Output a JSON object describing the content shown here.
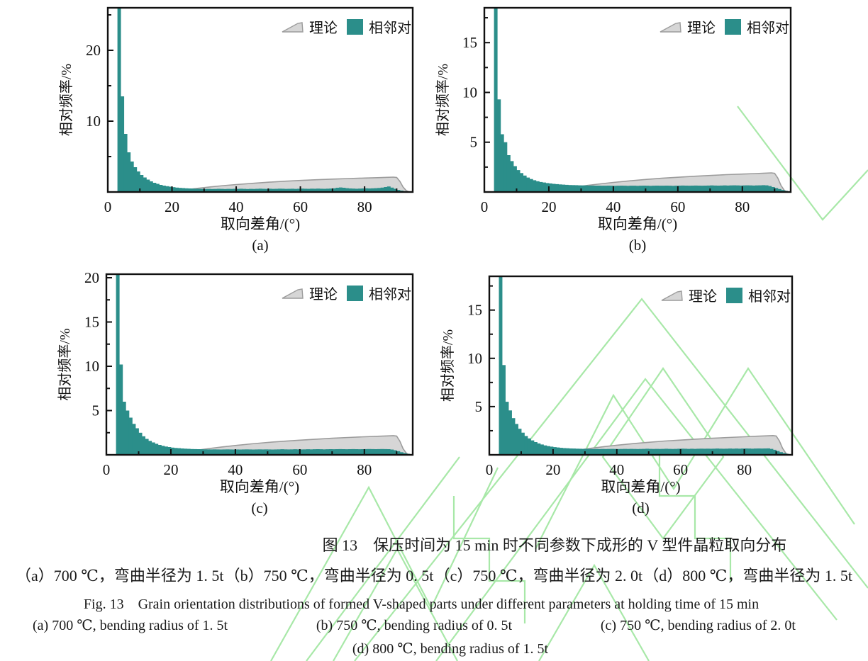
{
  "colors": {
    "bar_teal": "#2b8e8a",
    "theory_fill": "#d6d6d6",
    "theory_stroke": "#9c9c9c",
    "axis_black": "#111111",
    "watermark_green": "#a8e8a8"
  },
  "legend": {
    "theory_label": "理论",
    "adjacent_label": "相邻对"
  },
  "captions": {
    "cn_title": "图 13　保压时间为 15 min 时不同参数下成形的 V 型件晶粒取向分布",
    "cn_parts": [
      "（a）700 ℃，弯曲半径为 1. 5t",
      "（b）750 ℃，弯曲半径为 0. 5t",
      "（c）750 ℃，弯曲半径为 2. 0t",
      "（d）800 ℃，弯曲半径为 1. 5t"
    ],
    "en_title": "Fig. 13　Grain orientation distributions of formed V-shaped parts under different parameters at holding time of 15 min",
    "en_line1_parts": [
      "(a) 700 ℃, bending radius of 1. 5t",
      "(b) 750 ℃, bending radius of 0. 5t",
      "(c) 750 ℃, bending radius of 2. 0t"
    ],
    "en_line2_parts": [
      "(d) 800 ℃, bending radius of 1. 5t"
    ]
  },
  "chart_data": [
    {
      "id": "a",
      "type": "bar",
      "sub_label": "(a)",
      "xlabel": "取向差角/(°)",
      "ylabel": "相对频率/%",
      "xlim": [
        0,
        95
      ],
      "ylim": [
        0,
        26
      ],
      "xtick_major": [
        0,
        20,
        40,
        60,
        80
      ],
      "xtick_minor": [
        10,
        30,
        50,
        70,
        90
      ],
      "ytick_major": [
        10,
        20
      ],
      "ytick_minor": [
        5,
        15,
        25
      ],
      "legend_entries": [
        "理论",
        "相邻对"
      ],
      "bin_start": 3,
      "bin_width": 1,
      "bars": [
        26,
        13.5,
        8.2,
        5.6,
        4.3,
        3.5,
        2.9,
        2.4,
        2.05,
        1.75,
        1.5,
        1.3,
        1.15,
        1.0,
        0.9,
        0.82,
        0.75,
        0.68,
        0.62,
        0.58,
        0.55,
        0.52,
        0.5,
        0.48,
        0.46,
        0.45,
        0.44,
        0.43,
        0.44,
        0.42,
        0.43,
        0.45,
        0.44,
        0.42,
        0.44,
        0.43,
        0.45,
        0.44,
        0.46,
        0.44,
        0.42,
        0.44,
        0.43,
        0.45,
        0.47,
        0.45,
        0.44,
        0.46,
        0.44,
        0.45,
        0.47,
        0.46,
        0.44,
        0.45,
        0.46,
        0.44,
        0.46,
        0.48,
        0.46,
        0.45,
        0.47,
        0.46,
        0.48,
        0.46,
        0.45,
        0.47,
        0.49,
        0.52,
        0.6,
        0.64,
        0.6,
        0.54,
        0.5,
        0.48,
        0.46,
        0.48,
        0.5,
        0.52,
        0.5,
        0.52,
        0.54,
        0.57,
        0.62,
        0.7,
        0.78,
        0.62,
        0.45,
        0.3,
        0.2,
        0.12,
        0.07,
        0.04
      ],
      "theory": [
        [
          16,
          0.02
        ],
        [
          20,
          0.12
        ],
        [
          24,
          0.3
        ],
        [
          28,
          0.52
        ],
        [
          32,
          0.72
        ],
        [
          36,
          0.9
        ],
        [
          40,
          1.05
        ],
        [
          45,
          1.22
        ],
        [
          50,
          1.38
        ],
        [
          55,
          1.52
        ],
        [
          60,
          1.63
        ],
        [
          65,
          1.73
        ],
        [
          70,
          1.82
        ],
        [
          75,
          1.9
        ],
        [
          80,
          1.97
        ],
        [
          84,
          2.02
        ],
        [
          87,
          2.07
        ],
        [
          89,
          2.1
        ],
        [
          90,
          2.05
        ],
        [
          91,
          1.5
        ],
        [
          92,
          0.7
        ],
        [
          93,
          0.2
        ],
        [
          93.8,
          0.02
        ]
      ]
    },
    {
      "id": "b",
      "type": "bar",
      "sub_label": "(b)",
      "xlabel": "取向差角/(°)",
      "ylabel": "相对频率/%",
      "xlim": [
        0,
        95
      ],
      "ylim": [
        0,
        18.5
      ],
      "xtick_major": [
        0,
        20,
        40,
        60,
        80
      ],
      "xtick_minor": [
        10,
        30,
        50,
        70,
        90
      ],
      "ytick_major": [
        5,
        10,
        15
      ],
      "ytick_minor": [
        2.5,
        7.5,
        12.5,
        17.5
      ],
      "legend_entries": [
        "理论",
        "相邻对"
      ],
      "bin_start": 3,
      "bin_width": 1,
      "bars": [
        18.5,
        9.3,
        5.8,
        5.0,
        3.7,
        3.1,
        2.6,
        2.2,
        1.9,
        1.65,
        1.45,
        1.3,
        1.18,
        1.08,
        1.0,
        0.95,
        0.9,
        0.86,
        0.82,
        0.79,
        0.76,
        0.74,
        0.72,
        0.7,
        0.69,
        0.68,
        0.67,
        0.66,
        0.66,
        0.65,
        0.65,
        0.64,
        0.64,
        0.63,
        0.63,
        0.64,
        0.63,
        0.62,
        0.63,
        0.64,
        0.63,
        0.62,
        0.63,
        0.63,
        0.62,
        0.63,
        0.64,
        0.63,
        0.62,
        0.63,
        0.64,
        0.63,
        0.63,
        0.64,
        0.63,
        0.62,
        0.63,
        0.64,
        0.65,
        0.64,
        0.63,
        0.64,
        0.65,
        0.64,
        0.63,
        0.64,
        0.65,
        0.66,
        0.65,
        0.64,
        0.65,
        0.66,
        0.65,
        0.66,
        0.67,
        0.66,
        0.65,
        0.66,
        0.67,
        0.66,
        0.65,
        0.66,
        0.67,
        0.68,
        0.67,
        0.6,
        0.5,
        0.4,
        0.3,
        0.2,
        0.12,
        0.06
      ],
      "theory": [
        [
          16,
          0.02
        ],
        [
          20,
          0.1
        ],
        [
          24,
          0.28
        ],
        [
          28,
          0.48
        ],
        [
          32,
          0.66
        ],
        [
          36,
          0.82
        ],
        [
          40,
          0.96
        ],
        [
          45,
          1.12
        ],
        [
          50,
          1.26
        ],
        [
          55,
          1.38
        ],
        [
          60,
          1.48
        ],
        [
          65,
          1.58
        ],
        [
          70,
          1.66
        ],
        [
          75,
          1.74
        ],
        [
          80,
          1.8
        ],
        [
          84,
          1.85
        ],
        [
          87,
          1.89
        ],
        [
          89,
          1.92
        ],
        [
          90,
          1.88
        ],
        [
          91,
          1.4
        ],
        [
          92,
          0.65
        ],
        [
          93,
          0.18
        ],
        [
          93.8,
          0.02
        ]
      ]
    },
    {
      "id": "c",
      "type": "bar",
      "sub_label": "(c)",
      "xlabel": "取向差角/(°)",
      "ylabel": "相对频率/%",
      "xlim": [
        0,
        95
      ],
      "ylim": [
        0,
        20.4
      ],
      "xtick_major": [
        0,
        20,
        40,
        60,
        80
      ],
      "xtick_minor": [
        10,
        30,
        50,
        70,
        90
      ],
      "ytick_major": [
        5,
        10,
        15,
        20
      ],
      "ytick_minor": [
        2.5,
        7.5,
        12.5,
        17.5
      ],
      "legend_entries": [
        "理论",
        "相邻对"
      ],
      "bin_start": 3,
      "bin_width": 1,
      "bars": [
        20.4,
        10.2,
        6.0,
        5.0,
        4.2,
        3.5,
        3.0,
        2.5,
        2.1,
        1.8,
        1.58,
        1.4,
        1.25,
        1.12,
        1.02,
        0.94,
        0.88,
        0.82,
        0.78,
        0.75,
        0.72,
        0.7,
        0.68,
        0.66,
        0.65,
        0.64,
        0.63,
        0.62,
        0.62,
        0.61,
        0.62,
        0.61,
        0.6,
        0.61,
        0.62,
        0.61,
        0.6,
        0.61,
        0.6,
        0.61,
        0.62,
        0.61,
        0.6,
        0.61,
        0.62,
        0.61,
        0.62,
        0.61,
        0.6,
        0.61,
        0.62,
        0.63,
        0.62,
        0.61,
        0.62,
        0.63,
        0.62,
        0.61,
        0.62,
        0.63,
        0.62,
        0.63,
        0.64,
        0.63,
        0.62,
        0.63,
        0.64,
        0.63,
        0.64,
        0.65,
        0.64,
        0.63,
        0.64,
        0.65,
        0.64,
        0.63,
        0.64,
        0.65,
        0.66,
        0.65,
        0.64,
        0.65,
        0.66,
        0.65,
        0.64,
        0.6,
        0.52,
        0.42,
        0.3,
        0.2,
        0.12,
        0.06
      ],
      "theory": [
        [
          16,
          0.02
        ],
        [
          20,
          0.1
        ],
        [
          24,
          0.3
        ],
        [
          28,
          0.52
        ],
        [
          32,
          0.72
        ],
        [
          36,
          0.9
        ],
        [
          40,
          1.06
        ],
        [
          45,
          1.24
        ],
        [
          50,
          1.4
        ],
        [
          55,
          1.54
        ],
        [
          60,
          1.66
        ],
        [
          65,
          1.77
        ],
        [
          70,
          1.87
        ],
        [
          75,
          1.96
        ],
        [
          80,
          2.04
        ],
        [
          84,
          2.1
        ],
        [
          87,
          2.14
        ],
        [
          89,
          2.17
        ],
        [
          90,
          2.12
        ],
        [
          91,
          1.55
        ],
        [
          92,
          0.7
        ],
        [
          93,
          0.2
        ],
        [
          93.8,
          0.02
        ]
      ]
    },
    {
      "id": "d",
      "type": "bar",
      "sub_label": "(d)",
      "xlabel": "取向差角/(°)",
      "ylabel": "相对频率/%",
      "xlim": [
        0,
        95
      ],
      "ylim": [
        0,
        18.5
      ],
      "xtick_major": [
        0,
        20,
        40,
        60,
        80
      ],
      "xtick_minor": [
        10,
        30,
        50,
        70,
        90
      ],
      "ytick_major": [
        5,
        10,
        15
      ],
      "ytick_minor": [
        2.5,
        7.5,
        12.5,
        17.5
      ],
      "legend_entries": [
        "理论",
        "相邻对"
      ],
      "bin_start": 3,
      "bin_width": 1,
      "bars": [
        18.5,
        9.3,
        5.5,
        4.6,
        3.8,
        3.2,
        2.7,
        2.3,
        1.95,
        1.7,
        1.5,
        1.32,
        1.18,
        1.07,
        0.98,
        0.9,
        0.85,
        0.8,
        0.76,
        0.73,
        0.7,
        0.68,
        0.66,
        0.65,
        0.64,
        0.63,
        0.62,
        0.62,
        0.61,
        0.6,
        0.61,
        0.6,
        0.61,
        0.6,
        0.61,
        0.62,
        0.61,
        0.6,
        0.61,
        0.62,
        0.61,
        0.62,
        0.61,
        0.6,
        0.61,
        0.62,
        0.63,
        0.62,
        0.61,
        0.62,
        0.61,
        0.62,
        0.63,
        0.62,
        0.61,
        0.62,
        0.63,
        0.64,
        0.63,
        0.62,
        0.63,
        0.62,
        0.63,
        0.64,
        0.63,
        0.64,
        0.63,
        0.64,
        0.65,
        0.64,
        0.63,
        0.64,
        0.65,
        0.64,
        0.65,
        0.64,
        0.65,
        0.66,
        0.65,
        0.64,
        0.65,
        0.66,
        0.65,
        0.66,
        0.67,
        0.62,
        0.52,
        0.4,
        0.28,
        0.18,
        0.1,
        0.05
      ],
      "theory": [
        [
          16,
          0.02
        ],
        [
          20,
          0.1
        ],
        [
          24,
          0.28
        ],
        [
          28,
          0.5
        ],
        [
          32,
          0.68
        ],
        [
          36,
          0.85
        ],
        [
          40,
          1.0
        ],
        [
          45,
          1.16
        ],
        [
          50,
          1.3
        ],
        [
          55,
          1.43
        ],
        [
          60,
          1.53
        ],
        [
          65,
          1.63
        ],
        [
          70,
          1.72
        ],
        [
          75,
          1.8
        ],
        [
          80,
          1.87
        ],
        [
          84,
          1.93
        ],
        [
          87,
          1.97
        ],
        [
          89,
          2.0
        ],
        [
          90,
          1.95
        ],
        [
          91,
          1.45
        ],
        [
          92,
          0.68
        ],
        [
          93,
          0.18
        ],
        [
          93.8,
          0.02
        ]
      ]
    }
  ]
}
